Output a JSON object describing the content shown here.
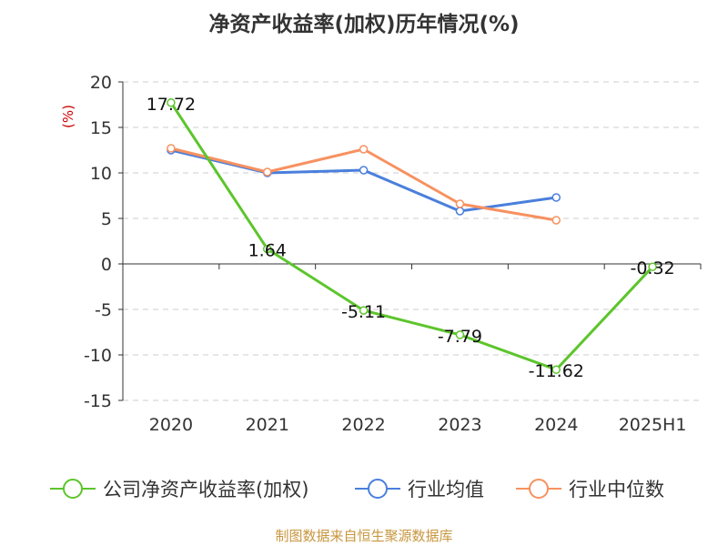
{
  "chart_data": {
    "type": "line",
    "title": "净资产收益率(加权)历年情况(%)",
    "ylabel": "(%)",
    "xlabel": "",
    "categories": [
      "2020",
      "2021",
      "2022",
      "2023",
      "2024",
      "2025H1"
    ],
    "y_ticks": [
      "20",
      "15",
      "10",
      "5",
      "0",
      "-5",
      "-10",
      "-15"
    ],
    "ylim": [
      -15,
      20
    ],
    "grid": true,
    "legend_position": "bottom",
    "series": [
      {
        "name": "公司净资产收益率(加权)",
        "color": "#5cc52c",
        "values": [
          17.72,
          1.64,
          -5.11,
          -7.79,
          -11.62,
          -0.32
        ],
        "labels": [
          "17.72",
          "1.64",
          "-5.11",
          "-7.79",
          "-11.62",
          "-0.32"
        ]
      },
      {
        "name": "行业均值",
        "color": "#4a7fdc",
        "values": [
          12.5,
          10.0,
          10.3,
          5.8,
          7.3,
          null
        ]
      },
      {
        "name": "行业中位数",
        "color": "#f79160",
        "values": [
          12.7,
          10.1,
          12.6,
          6.6,
          4.8,
          null
        ]
      }
    ],
    "source": "制图数据来自恒生聚源数据库",
    "colors": {
      "axis": "#333333",
      "grid": "#cccccc",
      "ylabel": "#cc0000",
      "source": "#c8963e"
    }
  }
}
